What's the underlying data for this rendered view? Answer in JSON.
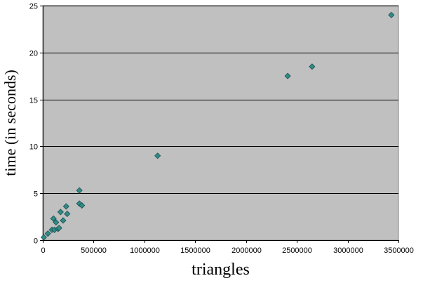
{
  "chart_data": {
    "type": "scatter",
    "title": "",
    "xlabel": "triangles",
    "ylabel": "time (in seconds)",
    "xlim": [
      0,
      3500000
    ],
    "ylim": [
      0,
      25
    ],
    "x_ticks": [
      0,
      500000,
      1000000,
      1500000,
      2000000,
      2500000,
      3000000,
      3500000
    ],
    "x_tick_labels": [
      "0",
      "500000",
      "1000000",
      "1500000",
      "2000000",
      "2500000",
      "3000000",
      "3500000"
    ],
    "y_ticks": [
      0,
      5,
      10,
      15,
      20,
      25
    ],
    "y_tick_labels": [
      "0",
      "5",
      "10",
      "15",
      "20",
      "25"
    ],
    "grid": "horizontal",
    "legend": "none",
    "colors": {
      "plot_background": "#c0c0c0",
      "gridline": "#000000",
      "marker_fill": "#2e8b88",
      "marker_stroke": "#1e4f4d"
    },
    "series": [
      {
        "points": [
          {
            "x": 10000,
            "y": 0.3
          },
          {
            "x": 50000,
            "y": 0.7
          },
          {
            "x": 90000,
            "y": 1.1
          },
          {
            "x": 115000,
            "y": 1.1
          },
          {
            "x": 105000,
            "y": 2.3
          },
          {
            "x": 130000,
            "y": 1.9
          },
          {
            "x": 150000,
            "y": 1.2
          },
          {
            "x": 160000,
            "y": 1.3
          },
          {
            "x": 175000,
            "y": 3.0
          },
          {
            "x": 200000,
            "y": 2.1
          },
          {
            "x": 230000,
            "y": 3.6
          },
          {
            "x": 240000,
            "y": 2.8
          },
          {
            "x": 360000,
            "y": 5.3
          },
          {
            "x": 360000,
            "y": 3.9
          },
          {
            "x": 385000,
            "y": 3.7
          },
          {
            "x": 1130000,
            "y": 9.0
          },
          {
            "x": 2410000,
            "y": 17.5
          },
          {
            "x": 2650000,
            "y": 18.5
          },
          {
            "x": 3430000,
            "y": 24.0
          }
        ]
      }
    ]
  }
}
